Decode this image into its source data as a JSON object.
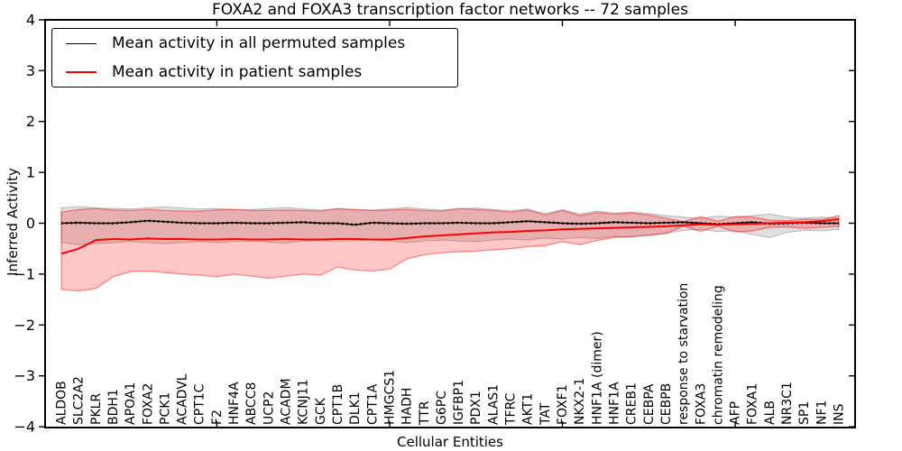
{
  "figure": {
    "background": "#ffffff"
  },
  "chart_data": {
    "type": "line",
    "title": "FOXA2 and FOXA3 transcription factor networks -- 72 samples",
    "xlabel": "Cellular Entities",
    "ylabel": "Inferred Activity",
    "ylim": [
      -4,
      4
    ],
    "grid": false,
    "legend_position": "upper left",
    "frame_color": "#000000",
    "ytick_values": [
      4,
      3,
      2,
      1,
      0,
      -1,
      -2,
      -3,
      -4
    ],
    "ytick_labels": [
      "4",
      "3",
      "2",
      "1",
      "0",
      "−1",
      "−2",
      "−3",
      "−4"
    ],
    "major_xtick_indices": [
      9,
      19,
      29,
      39
    ],
    "categories": [
      "ALDOB",
      "SLC2A2",
      "PKLR",
      "BDH1",
      "APOA1",
      "FOXA2",
      "PCK1",
      "ACADVL",
      "CPT1C",
      "F2",
      "HNF4A",
      "ABCC8",
      "UCP2",
      "ACADM",
      "KCNJ11",
      "GCK",
      "CPT1B",
      "DLK1",
      "CPT1A",
      "HMGCS1",
      "HADH",
      "TTR",
      "G6PC",
      "IGFBP1",
      "PDX1",
      "ALAS1",
      "TFRC",
      "AKT1",
      "TAT",
      "FOXF1",
      "NKX2-1",
      "HNF1A (dimer)",
      "HNF1A",
      "CREB1",
      "CEBPA",
      "CEBPB",
      "response to starvation",
      "FOXA3",
      "chromatin remodeling",
      "AFP",
      "FOXA1",
      "ALB",
      "NR3C1",
      "SP1",
      "NF1",
      "INS"
    ],
    "series": [
      {
        "name": "Mean activity in all permuted samples",
        "color": "#000000",
        "line_style": "solid-with-dotted-overlay",
        "band_color": "#000000",
        "band_alpha": 0.12,
        "values": [
          0.0,
          0.01,
          0.0,
          0.0,
          0.02,
          0.05,
          0.03,
          0.01,
          0.0,
          0.0,
          0.01,
          0.0,
          0.0,
          0.01,
          0.02,
          0.0,
          0.0,
          -0.03,
          0.01,
          0.0,
          -0.01,
          0.0,
          0.0,
          0.01,
          0.0,
          0.0,
          0.02,
          0.04,
          0.02,
          0.0,
          -0.01,
          0.0,
          0.02,
          0.01,
          0.0,
          0.01,
          0.02,
          0.0,
          -0.02,
          0.0,
          0.02,
          -0.01,
          0.0,
          0.01,
          0.0,
          0.0
        ],
        "band_upper": [
          0.3,
          0.33,
          0.3,
          0.29,
          0.28,
          0.3,
          0.32,
          0.3,
          0.28,
          0.29,
          0.27,
          0.27,
          0.29,
          0.31,
          0.28,
          0.26,
          0.28,
          0.26,
          0.26,
          0.28,
          0.31,
          0.28,
          0.26,
          0.28,
          0.3,
          0.27,
          0.25,
          0.28,
          0.19,
          0.27,
          0.18,
          0.24,
          0.2,
          0.22,
          0.19,
          0.15,
          0.12,
          0.1,
          0.14,
          0.12,
          0.15,
          0.18,
          0.12,
          0.1,
          0.12,
          0.1
        ],
        "band_lower": [
          -0.38,
          -0.42,
          -0.4,
          -0.38,
          -0.36,
          -0.38,
          -0.4,
          -0.38,
          -0.36,
          -0.38,
          -0.36,
          -0.35,
          -0.37,
          -0.39,
          -0.35,
          -0.34,
          -0.35,
          -0.34,
          -0.33,
          -0.35,
          -0.38,
          -0.35,
          -0.33,
          -0.35,
          -0.36,
          -0.33,
          -0.31,
          -0.33,
          -0.29,
          -0.31,
          -0.28,
          -0.3,
          -0.26,
          -0.27,
          -0.23,
          -0.2,
          -0.14,
          -0.12,
          -0.16,
          -0.15,
          -0.22,
          -0.28,
          -0.18,
          -0.14,
          -0.15,
          -0.12
        ]
      },
      {
        "name": "Mean activity in patient samples",
        "color": "#ff0000",
        "line_style": "solid",
        "band_color": "#ff0000",
        "band_alpha": 0.22,
        "values": [
          -0.6,
          -0.5,
          -0.33,
          -0.31,
          -0.32,
          -0.3,
          -0.31,
          -0.31,
          -0.32,
          -0.32,
          -0.31,
          -0.32,
          -0.32,
          -0.31,
          -0.32,
          -0.32,
          -0.31,
          -0.31,
          -0.32,
          -0.32,
          -0.29,
          -0.26,
          -0.24,
          -0.22,
          -0.2,
          -0.18,
          -0.17,
          -0.15,
          -0.14,
          -0.12,
          -0.11,
          -0.1,
          -0.09,
          -0.08,
          -0.07,
          -0.06,
          -0.04,
          -0.02,
          -0.03,
          -0.02,
          -0.01,
          0.0,
          0.01,
          0.02,
          0.04,
          0.08
        ],
        "band_upper": [
          0.22,
          0.27,
          0.29,
          0.26,
          0.25,
          0.27,
          0.25,
          0.24,
          0.24,
          0.26,
          0.27,
          0.25,
          0.25,
          0.26,
          0.25,
          0.24,
          0.29,
          0.27,
          0.25,
          0.26,
          0.27,
          0.25,
          0.24,
          0.29,
          0.27,
          0.25,
          0.22,
          0.26,
          0.16,
          0.25,
          0.15,
          0.21,
          0.18,
          0.2,
          0.16,
          0.1,
          0.03,
          0.13,
          0.04,
          0.13,
          0.12,
          0.06,
          0.05,
          0.08,
          0.07,
          0.15
        ],
        "band_lower": [
          -1.3,
          -1.33,
          -1.28,
          -1.05,
          -0.95,
          -0.94,
          -0.97,
          -1.0,
          -1.02,
          -1.05,
          -1.0,
          -1.04,
          -1.08,
          -1.04,
          -1.0,
          -1.02,
          -0.86,
          -0.92,
          -0.94,
          -0.9,
          -0.7,
          -0.62,
          -0.58,
          -0.56,
          -0.55,
          -0.52,
          -0.5,
          -0.46,
          -0.44,
          -0.36,
          -0.42,
          -0.34,
          -0.28,
          -0.26,
          -0.24,
          -0.2,
          -0.06,
          -0.16,
          -0.06,
          -0.17,
          -0.15,
          -0.08,
          -0.07,
          -0.1,
          -0.08,
          -0.06
        ]
      }
    ]
  }
}
